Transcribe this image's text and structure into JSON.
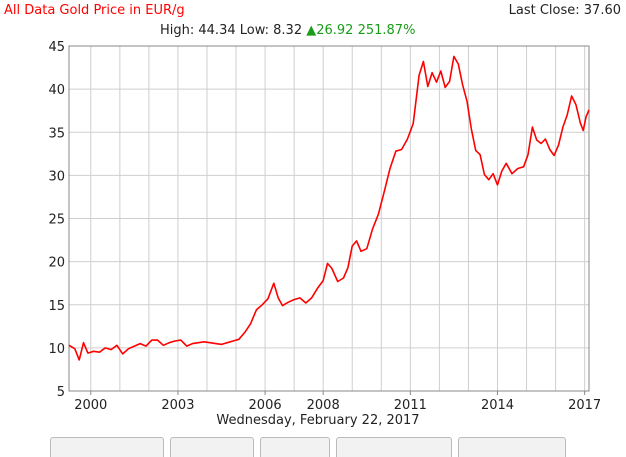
{
  "header": {
    "title": "All Data Gold Price in EUR/g",
    "last_close": "Last Close: 37.60",
    "stats_prefix": "High: 44.34 Low: 8.32",
    "change": "26.92 251.87%",
    "title_color": "#ff0000",
    "change_color": "#1a9c1a",
    "change_icon": "up-triangle-icon"
  },
  "footer": {
    "date": "Wednesday, February 22, 2017"
  },
  "tabs": [
    "",
    "",
    "",
    "",
    ""
  ],
  "chart_data": {
    "type": "line",
    "title": "All Data Gold Price in EUR/g",
    "xlabel": "",
    "ylabel": "",
    "x_ticks": [
      "2000",
      "2003",
      "2006",
      "2008",
      "2011",
      "2014",
      "2017"
    ],
    "x_tick_years": [
      2000,
      2003,
      2006,
      2008,
      2011,
      2014,
      2017
    ],
    "y_ticks": [
      5,
      10,
      15,
      20,
      25,
      30,
      35,
      40,
      45
    ],
    "xlim": [
      1999.25,
      2017.15
    ],
    "ylim": [
      5,
      45
    ],
    "grid": true,
    "series": [
      {
        "color": "#ff0000",
        "x": [
          1999.25,
          1999.45,
          1999.6,
          1999.75,
          1999.9,
          2000.1,
          2000.3,
          2000.5,
          2000.7,
          2000.9,
          2001.1,
          2001.3,
          2001.5,
          2001.7,
          2001.9,
          2002.1,
          2002.3,
          2002.5,
          2002.7,
          2002.9,
          2003.1,
          2003.3,
          2003.5,
          2003.7,
          2003.9,
          2004.1,
          2004.3,
          2004.5,
          2004.7,
          2004.9,
          2005.1,
          2005.3,
          2005.5,
          2005.7,
          2005.9,
          2006.1,
          2006.3,
          2006.45,
          2006.6,
          2006.8,
          2007.0,
          2007.2,
          2007.4,
          2007.6,
          2007.8,
          2008.0,
          2008.15,
          2008.3,
          2008.5,
          2008.7,
          2008.85,
          2009.0,
          2009.15,
          2009.3,
          2009.5,
          2009.7,
          2009.9,
          2010.1,
          2010.3,
          2010.5,
          2010.7,
          2010.9,
          2011.1,
          2011.3,
          2011.45,
          2011.6,
          2011.75,
          2011.9,
          2012.05,
          2012.2,
          2012.35,
          2012.5,
          2012.65,
          2012.8,
          2012.95,
          2013.1,
          2013.25,
          2013.4,
          2013.55,
          2013.7,
          2013.85,
          2014.0,
          2014.15,
          2014.3,
          2014.5,
          2014.7,
          2014.9,
          2015.05,
          2015.2,
          2015.35,
          2015.5,
          2015.65,
          2015.8,
          2015.95,
          2016.1,
          2016.25,
          2016.4,
          2016.55,
          2016.7,
          2016.85,
          2016.95,
          2017.05,
          2017.15
        ],
        "y": [
          10.3,
          9.9,
          8.6,
          10.6,
          9.4,
          9.6,
          9.5,
          10.0,
          9.8,
          10.3,
          9.3,
          9.9,
          10.2,
          10.5,
          10.2,
          10.9,
          10.9,
          10.3,
          10.6,
          10.8,
          10.9,
          10.2,
          10.5,
          10.6,
          10.7,
          10.6,
          10.5,
          10.4,
          10.6,
          10.8,
          11.0,
          11.8,
          12.8,
          14.4,
          15.0,
          15.7,
          17.5,
          15.8,
          14.9,
          15.3,
          15.6,
          15.8,
          15.2,
          15.8,
          16.9,
          17.8,
          19.8,
          19.2,
          17.7,
          18.1,
          19.3,
          21.8,
          22.4,
          21.2,
          21.5,
          23.8,
          25.5,
          28.1,
          30.8,
          32.8,
          33.0,
          34.2,
          36.0,
          41.6,
          43.2,
          40.3,
          41.9,
          40.8,
          42.1,
          40.2,
          40.9,
          43.8,
          42.9,
          40.5,
          38.6,
          35.4,
          32.9,
          32.4,
          30.1,
          29.5,
          30.2,
          28.9,
          30.5,
          31.4,
          30.2,
          30.8,
          31.0,
          32.4,
          35.6,
          34.1,
          33.7,
          34.2,
          33.0,
          32.3,
          33.5,
          35.6,
          37.0,
          39.2,
          38.2,
          36.1,
          35.2,
          36.8,
          37.6
        ]
      }
    ]
  }
}
